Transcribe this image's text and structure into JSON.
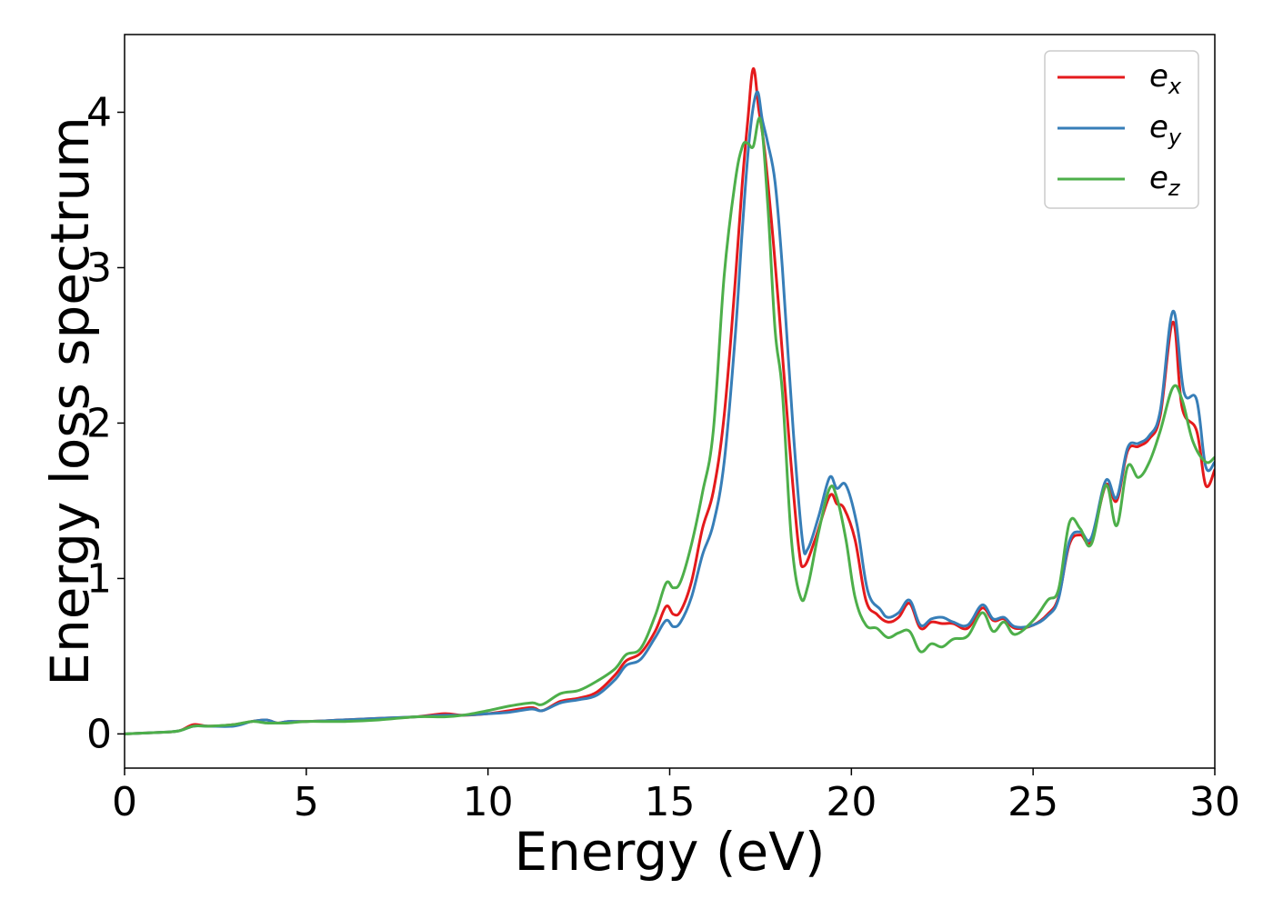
{
  "chart_data": {
    "type": "line",
    "xlabel": "Energy (eV)",
    "ylabel": "Energy loss spectrum",
    "xlim": [
      0,
      30
    ],
    "ylim": [
      -0.22,
      4.5
    ],
    "xticks": [
      0,
      5,
      10,
      15,
      20,
      25,
      30
    ],
    "xtick_labels": [
      "0",
      "5",
      "10",
      "15",
      "20",
      "25",
      "30"
    ],
    "yticks": [
      0,
      1,
      2,
      3,
      4
    ],
    "ytick_labels": [
      "0",
      "1",
      "2",
      "3",
      "4"
    ],
    "grid": false,
    "legend_position": "top-right",
    "series": [
      {
        "name": "e",
        "subscript": "x",
        "color": "#e41a1c",
        "points": [
          [
            0,
            0.0
          ],
          [
            1.0,
            0.01
          ],
          [
            1.5,
            0.02
          ],
          [
            1.9,
            0.06
          ],
          [
            2.3,
            0.05
          ],
          [
            3.0,
            0.06
          ],
          [
            3.5,
            0.08
          ],
          [
            3.9,
            0.09
          ],
          [
            4.2,
            0.07
          ],
          [
            4.5,
            0.08
          ],
          [
            5.0,
            0.08
          ],
          [
            6.0,
            0.09
          ],
          [
            7.0,
            0.1
          ],
          [
            8.0,
            0.11
          ],
          [
            8.8,
            0.13
          ],
          [
            9.3,
            0.12
          ],
          [
            10.0,
            0.13
          ],
          [
            10.6,
            0.15
          ],
          [
            11.2,
            0.17
          ],
          [
            11.5,
            0.15
          ],
          [
            12.0,
            0.21
          ],
          [
            12.5,
            0.23
          ],
          [
            13.0,
            0.27
          ],
          [
            13.5,
            0.38
          ],
          [
            13.8,
            0.47
          ],
          [
            14.2,
            0.52
          ],
          [
            14.6,
            0.66
          ],
          [
            14.9,
            0.82
          ],
          [
            15.1,
            0.77
          ],
          [
            15.3,
            0.79
          ],
          [
            15.6,
            0.98
          ],
          [
            15.9,
            1.32
          ],
          [
            16.2,
            1.56
          ],
          [
            16.5,
            2.05
          ],
          [
            16.8,
            2.9
          ],
          [
            17.0,
            3.55
          ],
          [
            17.15,
            3.95
          ],
          [
            17.3,
            4.28
          ],
          [
            17.45,
            4.02
          ],
          [
            17.6,
            3.78
          ],
          [
            17.8,
            3.3
          ],
          [
            18.0,
            2.75
          ],
          [
            18.3,
            1.85
          ],
          [
            18.55,
            1.2
          ],
          [
            18.7,
            1.08
          ],
          [
            19.0,
            1.25
          ],
          [
            19.4,
            1.53
          ],
          [
            19.6,
            1.48
          ],
          [
            19.8,
            1.45
          ],
          [
            20.1,
            1.25
          ],
          [
            20.4,
            0.86
          ],
          [
            20.7,
            0.77
          ],
          [
            21.0,
            0.72
          ],
          [
            21.3,
            0.75
          ],
          [
            21.6,
            0.84
          ],
          [
            21.9,
            0.68
          ],
          [
            22.2,
            0.72
          ],
          [
            22.5,
            0.71
          ],
          [
            22.8,
            0.71
          ],
          [
            23.2,
            0.68
          ],
          [
            23.6,
            0.81
          ],
          [
            23.9,
            0.73
          ],
          [
            24.2,
            0.74
          ],
          [
            24.5,
            0.68
          ],
          [
            25.0,
            0.7
          ],
          [
            25.4,
            0.77
          ],
          [
            25.7,
            0.88
          ],
          [
            26.0,
            1.22
          ],
          [
            26.3,
            1.28
          ],
          [
            26.6,
            1.24
          ],
          [
            27.0,
            1.6
          ],
          [
            27.3,
            1.5
          ],
          [
            27.6,
            1.82
          ],
          [
            27.9,
            1.85
          ],
          [
            28.2,
            1.9
          ],
          [
            28.5,
            2.05
          ],
          [
            28.85,
            2.65
          ],
          [
            29.1,
            2.1
          ],
          [
            29.5,
            1.95
          ],
          [
            29.75,
            1.6
          ],
          [
            30.0,
            1.7
          ]
        ]
      },
      {
        "name": "e",
        "subscript": "y",
        "color": "#377eb8",
        "points": [
          [
            0,
            0.0
          ],
          [
            1.0,
            0.01
          ],
          [
            1.5,
            0.02
          ],
          [
            1.9,
            0.05
          ],
          [
            2.3,
            0.05
          ],
          [
            3.0,
            0.05
          ],
          [
            3.5,
            0.08
          ],
          [
            3.9,
            0.09
          ],
          [
            4.2,
            0.07
          ],
          [
            4.5,
            0.08
          ],
          [
            5.0,
            0.08
          ],
          [
            6.0,
            0.09
          ],
          [
            7.0,
            0.1
          ],
          [
            8.0,
            0.11
          ],
          [
            8.8,
            0.12
          ],
          [
            9.3,
            0.12
          ],
          [
            10.0,
            0.13
          ],
          [
            10.6,
            0.14
          ],
          [
            11.2,
            0.16
          ],
          [
            11.5,
            0.15
          ],
          [
            12.0,
            0.2
          ],
          [
            12.5,
            0.22
          ],
          [
            13.0,
            0.25
          ],
          [
            13.5,
            0.35
          ],
          [
            13.8,
            0.44
          ],
          [
            14.2,
            0.48
          ],
          [
            14.6,
            0.62
          ],
          [
            14.9,
            0.73
          ],
          [
            15.1,
            0.69
          ],
          [
            15.3,
            0.72
          ],
          [
            15.6,
            0.88
          ],
          [
            15.9,
            1.15
          ],
          [
            16.2,
            1.35
          ],
          [
            16.5,
            1.75
          ],
          [
            16.8,
            2.55
          ],
          [
            17.0,
            3.25
          ],
          [
            17.2,
            3.85
          ],
          [
            17.4,
            4.13
          ],
          [
            17.55,
            3.95
          ],
          [
            17.7,
            3.8
          ],
          [
            17.9,
            3.55
          ],
          [
            18.1,
            3.0
          ],
          [
            18.4,
            1.95
          ],
          [
            18.65,
            1.25
          ],
          [
            18.8,
            1.19
          ],
          [
            19.1,
            1.4
          ],
          [
            19.4,
            1.65
          ],
          [
            19.6,
            1.58
          ],
          [
            19.85,
            1.6
          ],
          [
            20.15,
            1.35
          ],
          [
            20.45,
            0.92
          ],
          [
            20.8,
            0.8
          ],
          [
            21.0,
            0.75
          ],
          [
            21.3,
            0.78
          ],
          [
            21.6,
            0.86
          ],
          [
            21.9,
            0.7
          ],
          [
            22.2,
            0.74
          ],
          [
            22.5,
            0.75
          ],
          [
            22.8,
            0.72
          ],
          [
            23.2,
            0.7
          ],
          [
            23.6,
            0.83
          ],
          [
            23.9,
            0.74
          ],
          [
            24.2,
            0.75
          ],
          [
            24.5,
            0.69
          ],
          [
            25.0,
            0.7
          ],
          [
            25.4,
            0.76
          ],
          [
            25.7,
            0.87
          ],
          [
            26.0,
            1.24
          ],
          [
            26.3,
            1.3
          ],
          [
            26.6,
            1.26
          ],
          [
            27.0,
            1.63
          ],
          [
            27.3,
            1.52
          ],
          [
            27.6,
            1.84
          ],
          [
            27.9,
            1.87
          ],
          [
            28.2,
            1.92
          ],
          [
            28.5,
            2.08
          ],
          [
            28.85,
            2.72
          ],
          [
            29.15,
            2.2
          ],
          [
            29.5,
            2.15
          ],
          [
            29.75,
            1.72
          ],
          [
            30.0,
            1.75
          ]
        ]
      },
      {
        "name": "e",
        "subscript": "z",
        "color": "#4daf4a",
        "points": [
          [
            0,
            0.0
          ],
          [
            1.0,
            0.01
          ],
          [
            1.5,
            0.02
          ],
          [
            1.9,
            0.05
          ],
          [
            2.3,
            0.05
          ],
          [
            3.0,
            0.06
          ],
          [
            3.5,
            0.08
          ],
          [
            3.9,
            0.07
          ],
          [
            4.2,
            0.07
          ],
          [
            4.5,
            0.07
          ],
          [
            5.0,
            0.08
          ],
          [
            6.0,
            0.08
          ],
          [
            7.0,
            0.09
          ],
          [
            8.0,
            0.11
          ],
          [
            8.8,
            0.11
          ],
          [
            9.3,
            0.12
          ],
          [
            10.0,
            0.15
          ],
          [
            10.6,
            0.18
          ],
          [
            11.2,
            0.2
          ],
          [
            11.5,
            0.19
          ],
          [
            12.0,
            0.26
          ],
          [
            12.5,
            0.28
          ],
          [
            13.0,
            0.34
          ],
          [
            13.5,
            0.42
          ],
          [
            13.8,
            0.51
          ],
          [
            14.2,
            0.55
          ],
          [
            14.6,
            0.76
          ],
          [
            14.9,
            0.97
          ],
          [
            15.1,
            0.94
          ],
          [
            15.3,
            0.98
          ],
          [
            15.6,
            1.22
          ],
          [
            15.9,
            1.55
          ],
          [
            16.2,
            1.95
          ],
          [
            16.5,
            2.95
          ],
          [
            16.8,
            3.55
          ],
          [
            17.0,
            3.78
          ],
          [
            17.15,
            3.8
          ],
          [
            17.3,
            3.78
          ],
          [
            17.5,
            3.95
          ],
          [
            17.7,
            3.4
          ],
          [
            17.9,
            2.6
          ],
          [
            18.1,
            2.2
          ],
          [
            18.35,
            1.25
          ],
          [
            18.6,
            0.88
          ],
          [
            18.8,
            0.95
          ],
          [
            19.1,
            1.3
          ],
          [
            19.4,
            1.58
          ],
          [
            19.6,
            1.52
          ],
          [
            19.85,
            1.25
          ],
          [
            20.1,
            0.88
          ],
          [
            20.4,
            0.7
          ],
          [
            20.7,
            0.68
          ],
          [
            21.0,
            0.62
          ],
          [
            21.3,
            0.65
          ],
          [
            21.6,
            0.66
          ],
          [
            21.9,
            0.53
          ],
          [
            22.2,
            0.58
          ],
          [
            22.5,
            0.56
          ],
          [
            22.8,
            0.61
          ],
          [
            23.2,
            0.63
          ],
          [
            23.6,
            0.78
          ],
          [
            23.9,
            0.66
          ],
          [
            24.2,
            0.72
          ],
          [
            24.5,
            0.64
          ],
          [
            25.0,
            0.73
          ],
          [
            25.4,
            0.86
          ],
          [
            25.7,
            0.93
          ],
          [
            26.0,
            1.36
          ],
          [
            26.3,
            1.32
          ],
          [
            26.6,
            1.22
          ],
          [
            27.0,
            1.6
          ],
          [
            27.3,
            1.34
          ],
          [
            27.6,
            1.72
          ],
          [
            27.9,
            1.65
          ],
          [
            28.2,
            1.75
          ],
          [
            28.5,
            1.95
          ],
          [
            28.85,
            2.23
          ],
          [
            29.1,
            2.15
          ],
          [
            29.4,
            1.88
          ],
          [
            29.75,
            1.75
          ],
          [
            30.0,
            1.78
          ]
        ]
      }
    ]
  }
}
